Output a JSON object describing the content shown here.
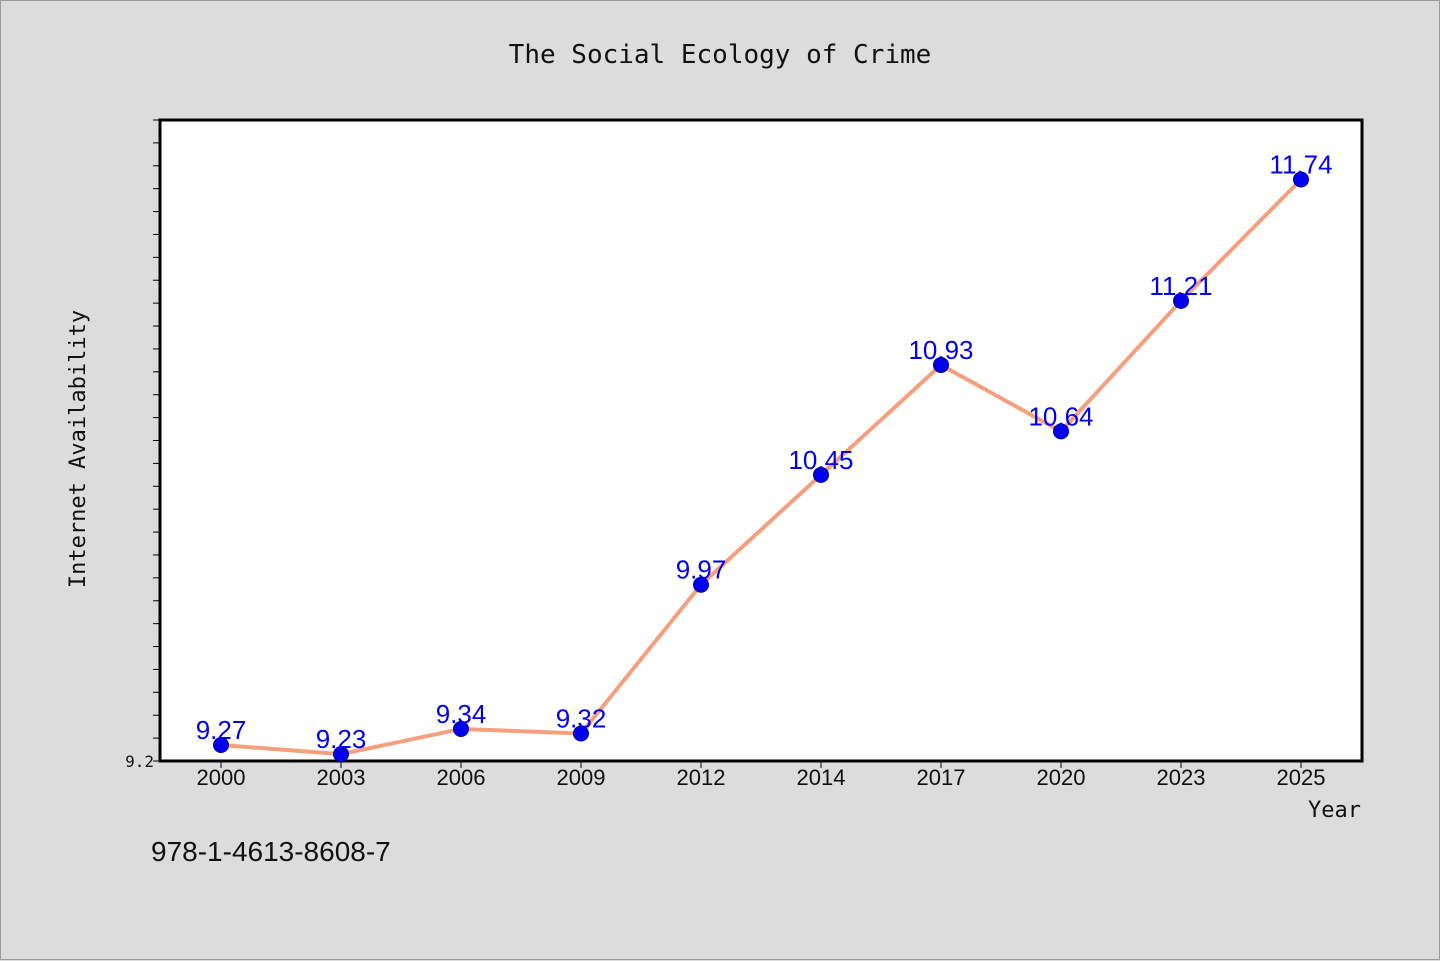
{
  "chart_data": {
    "type": "line",
    "title": "The Social Ecology of Crime",
    "xlabel": "Year",
    "ylabel": "Internet Availability",
    "categories": [
      "2000",
      "2003",
      "2006",
      "2009",
      "2012",
      "2014",
      "2017",
      "2020",
      "2023",
      "2025"
    ],
    "series": [
      {
        "values": [
          9.27,
          9.23,
          9.34,
          9.32,
          9.97,
          10.45,
          10.93,
          10.64,
          11.21,
          11.74
        ],
        "data_labels": [
          "9.27",
          "9.23",
          "9.34",
          "9.32",
          "9.97",
          "10.45",
          "10.93",
          "10.64",
          "11.21",
          "11.74"
        ]
      }
    ],
    "yticks_labeled": [
      "9.2"
    ],
    "ylim": [
      9.2,
      12.0
    ],
    "grid": false,
    "legend": "none",
    "colors": {
      "line": "#f4a07e",
      "marker": "#0000ee",
      "labels": "#0000ee",
      "background": "#dcdcdc",
      "plot_background": "#ffffff"
    }
  },
  "footer": {
    "isbn": "978-1-4613-8608-7"
  }
}
